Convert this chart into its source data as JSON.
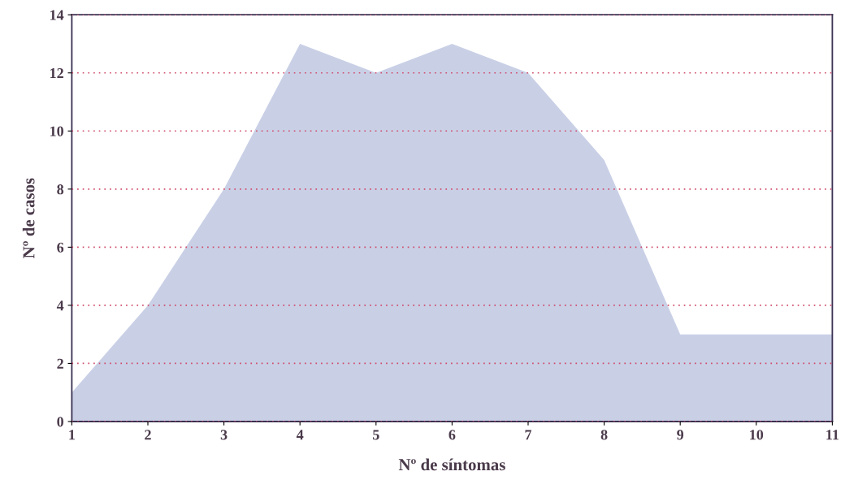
{
  "chart_data": {
    "type": "area",
    "xlabel": "Nº de síntomas",
    "ylabel": "Nº de casos",
    "x": [
      1,
      2,
      3,
      4,
      5,
      6,
      7,
      8,
      9,
      10,
      11
    ],
    "series": [
      {
        "color": "#c9d0e6",
        "values": [
          1,
          4,
          8,
          13,
          12,
          13,
          12,
          9,
          3,
          3,
          3
        ]
      }
    ],
    "xlim": [
      1,
      11
    ],
    "xticks": [
      1,
      2,
      3,
      4,
      5,
      6,
      7,
      8,
      9,
      10,
      11
    ],
    "ylim": [
      0,
      14
    ],
    "yticks": [
      0,
      2,
      4,
      6,
      8,
      10,
      12,
      14
    ],
    "grid": "y",
    "legend": false
  }
}
